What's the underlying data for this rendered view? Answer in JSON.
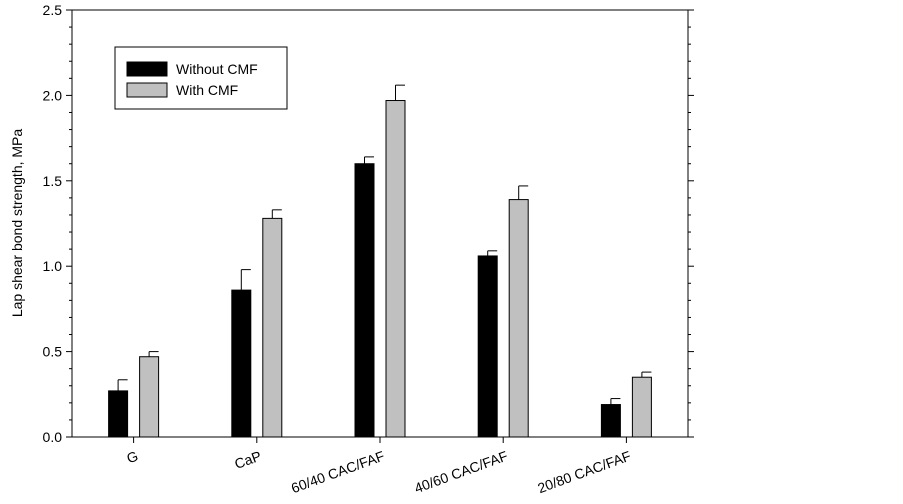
{
  "chart_data": {
    "type": "bar",
    "title": "",
    "xlabel": "",
    "ylabel": "Lap shear bond strength, MPa",
    "ylim": [
      0,
      2.5
    ],
    "yticks": [
      "0.0",
      "0.5",
      "1.0",
      "1.5",
      "2.0",
      "2.5"
    ],
    "grid": false,
    "legend_position": "top-left",
    "categories": [
      "G",
      "CaP",
      "60/40 CAC/FAF",
      "40/60 CAC/FAF",
      "20/80 CAC/FAF"
    ],
    "series": [
      {
        "name": "Without CMF",
        "color": "#000000",
        "values": [
          0.27,
          0.86,
          1.6,
          1.06,
          0.19
        ],
        "errors": [
          0.065,
          0.12,
          0.04,
          0.03,
          0.035
        ]
      },
      {
        "name": "With CMF",
        "color": "#c0c0c0",
        "values": [
          0.47,
          1.28,
          1.97,
          1.39,
          0.35
        ],
        "errors": [
          0.03,
          0.05,
          0.09,
          0.08,
          0.03
        ]
      }
    ]
  }
}
